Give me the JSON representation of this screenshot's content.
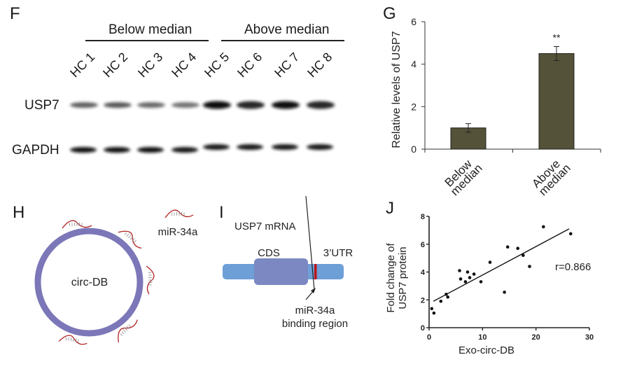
{
  "panels": {
    "F": {
      "letter": "F",
      "groups": [
        {
          "label": "Below median",
          "lanes": [
            "HC 1",
            "HC 2",
            "HC 3",
            "HC 4"
          ]
        },
        {
          "label": "Above median",
          "lanes": [
            "HC 5",
            "HC 6",
            "HC 7",
            "HC 8"
          ]
        }
      ],
      "rows": [
        {
          "label": "USP7",
          "band_intensity": [
            0.55,
            0.6,
            0.5,
            0.45,
            1.0,
            0.85,
            1.0,
            0.85
          ]
        },
        {
          "label": "GAPDH",
          "band_intensity": [
            1.0,
            1.0,
            1.0,
            0.95,
            0.95,
            0.95,
            0.95,
            0.95
          ]
        }
      ]
    },
    "G": {
      "letter": "G"
    },
    "H": {
      "letter": "H",
      "circle_label": "circ-DB",
      "mirna_legend": "miR-34a",
      "ring_color": "#7b77b8",
      "mirna_color": "#b22222"
    },
    "I": {
      "letter": "I",
      "title": "USP7 mRNA",
      "cds_label": "CDS",
      "utr_label": "3’UTR",
      "binding_label_line1": "miR-34a",
      "binding_label_line2": "binding region",
      "mrna_color": "#6e9fd6",
      "cds_color": "#7b88c2",
      "binding_color": "#c0141a"
    },
    "J": {
      "letter": "J"
    }
  },
  "chart_data": [
    {
      "panel": "G",
      "type": "bar",
      "categories": [
        "Below median",
        "Above median"
      ],
      "category_lines": [
        [
          "Below",
          "median"
        ],
        [
          "Above",
          "median"
        ]
      ],
      "values": [
        1.0,
        4.5
      ],
      "errors": [
        0.2,
        0.33
      ],
      "annotations": [
        "",
        "**"
      ],
      "title": "",
      "xlabel": "",
      "ylabel": "Relative levels of USP7",
      "ylim": [
        0,
        6
      ],
      "yticks": [
        0,
        2,
        4,
        6
      ],
      "bar_color": "#545238",
      "grid": false
    },
    {
      "panel": "J",
      "type": "scatter",
      "xlabel": "Exo-circ-DB",
      "ylabel_lines": [
        "Fold change of",
        "USP7 protein"
      ],
      "xlim": [
        0,
        30
      ],
      "ylim": [
        0,
        8
      ],
      "xticks": [
        0,
        10,
        20,
        30
      ],
      "yticks": [
        0,
        2,
        4,
        6,
        8
      ],
      "annotation": "r=0.866",
      "points": [
        [
          0.5,
          1.37
        ],
        [
          0.9,
          1.05
        ],
        [
          2.2,
          1.9
        ],
        [
          3.2,
          2.4
        ],
        [
          3.5,
          2.2
        ],
        [
          5.7,
          4.1
        ],
        [
          5.9,
          3.5
        ],
        [
          6.8,
          3.3
        ],
        [
          7.2,
          4.0
        ],
        [
          7.6,
          3.6
        ],
        [
          8.4,
          3.85
        ],
        [
          9.7,
          3.3
        ],
        [
          11.4,
          4.7
        ],
        [
          14.1,
          2.55
        ],
        [
          14.7,
          5.8
        ],
        [
          16.6,
          5.7
        ],
        [
          17.6,
          5.2
        ],
        [
          18.8,
          4.4
        ],
        [
          21.4,
          7.25
        ],
        [
          26.5,
          6.75
        ]
      ],
      "fit_line": [
        [
          0.8,
          1.9
        ],
        [
          26.2,
          7.1
        ]
      ],
      "grid": false
    }
  ]
}
